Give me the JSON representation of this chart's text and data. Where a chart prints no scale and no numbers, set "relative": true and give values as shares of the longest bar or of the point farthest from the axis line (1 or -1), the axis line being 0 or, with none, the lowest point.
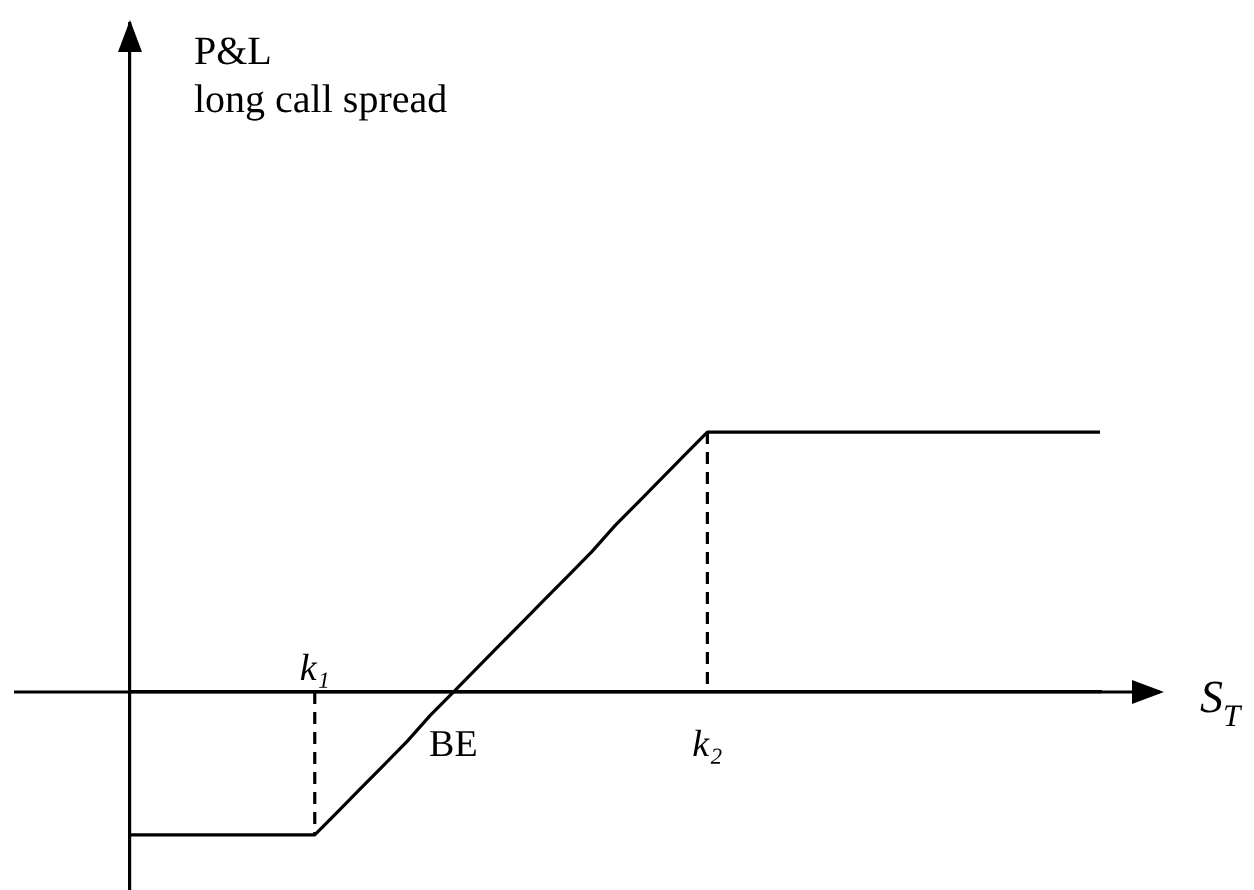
{
  "chart_data": {
    "type": "line",
    "title": "long call spread",
    "annotations": [
      "P&L"
    ],
    "xlabel": "S$_{T}$",
    "relative": true,
    "categories": [
      null,
      null,
      null,
      null,
      null,
      null,
      null,
      null,
      "k₁",
      null,
      null,
      null,
      null,
      null,
      "BE",
      null,
      null,
      null,
      null,
      null,
      null,
      null,
      null,
      null,
      null,
      "k₂",
      null,
      null,
      null,
      null,
      null,
      null,
      null,
      null,
      null,
      null,
      null,
      null,
      null,
      null,
      null,
      null,
      null
    ],
    "series": [
      {
        "color": "#000000",
        "values": [
          -0.55,
          -0.55,
          -0.55,
          -0.55,
          -0.55,
          -0.55,
          -0.55,
          -0.55,
          -0.55,
          -0.46,
          -0.37,
          -0.28,
          -0.19,
          -0.09,
          0,
          0.09,
          0.18,
          0.27,
          0.36,
          0.45,
          0.54,
          0.64,
          0.73,
          0.82,
          0.91,
          1,
          1,
          1,
          1,
          1,
          1,
          1,
          1,
          1,
          1,
          1,
          1,
          1,
          1,
          1,
          1,
          1,
          1
        ]
      },
      {
        "type": "line",
        "line_style": "dashed",
        "color": "#000000",
        "x": [
          "k₁",
          "k₁"
        ],
        "values": [
          0,
          -0.55
        ]
      },
      {
        "type": "line",
        "line_style": "dashed",
        "color": "#000000",
        "x": [
          "k₂",
          "k₂"
        ],
        "values": [
          1,
          0
        ]
      }
    ],
    "tick_labels": "x",
    "marker": "none",
    "line_style": "solid"
  }
}
